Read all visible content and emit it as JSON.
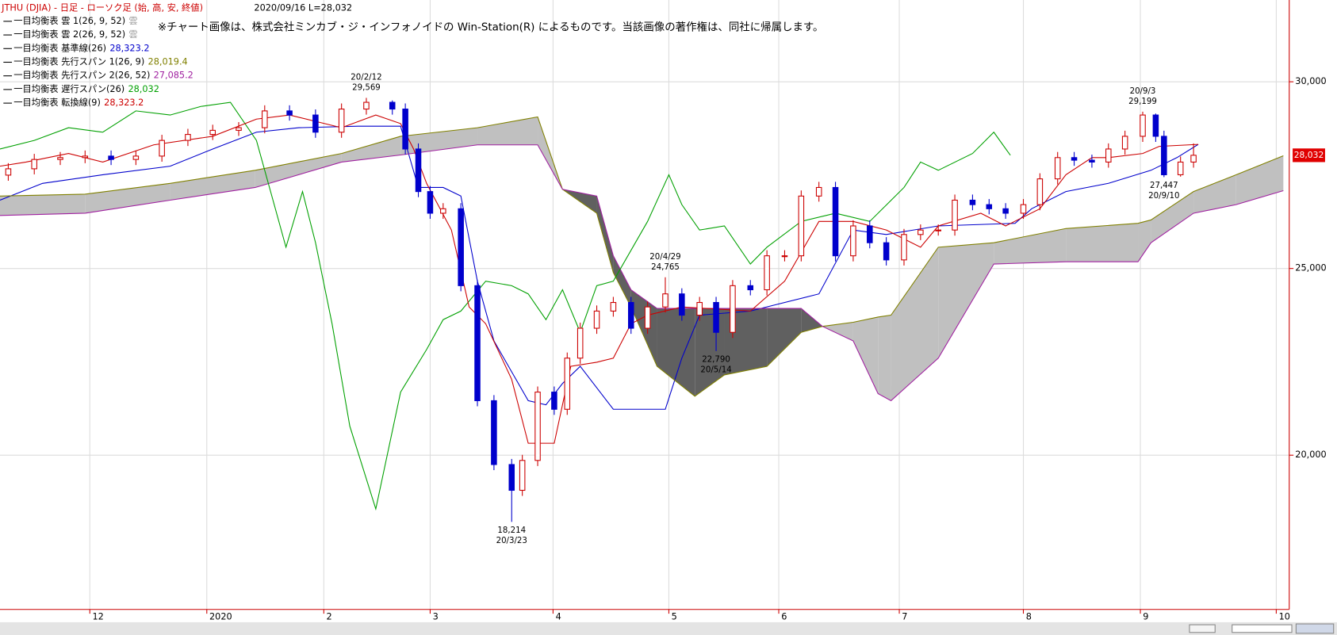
{
  "chart_data": {
    "type": "candlestick",
    "title": "JTHU (DJIA) - 日足 - ローソク足 (始, 高, 安, 終値)",
    "subtitle": "2020/09/16 L=28,032",
    "note": "※チャート画像は、株式会社ミンカブ・ジ・インフォノイドの Win-Station(R) によるものです。当該画像の著作権は、同社に帰属します。",
    "grid": true,
    "xlim": [
      11.17,
      22.08
    ],
    "xticks": [
      {
        "value": 11.93,
        "label": "12"
      },
      {
        "value": 12.92,
        "label": "2020"
      },
      {
        "value": 13.91,
        "label": "2"
      },
      {
        "value": 14.81,
        "label": "3"
      },
      {
        "value": 15.85,
        "label": "4"
      },
      {
        "value": 16.83,
        "label": "5"
      },
      {
        "value": 17.76,
        "label": "6"
      },
      {
        "value": 18.78,
        "label": "7"
      },
      {
        "value": 19.83,
        "label": "8"
      },
      {
        "value": 20.82,
        "label": "9"
      },
      {
        "value": 21.97,
        "label": "10"
      }
    ],
    "ylim": [
      15870,
      32190
    ],
    "yticks": [
      {
        "value": 20000,
        "label": "20,000"
      },
      {
        "value": 25000,
        "label": "25,000"
      },
      {
        "value": 30000,
        "label": "30,000"
      }
    ],
    "candles": {
      "up_color": "#cc0000",
      "down_color": "#0000cc",
      "x": [
        11.24,
        11.46,
        11.68,
        11.89,
        12.11,
        12.32,
        12.54,
        12.76,
        12.97,
        13.19,
        13.41,
        13.62,
        13.84,
        14.06,
        14.27,
        14.49,
        14.6,
        14.71,
        14.81,
        14.92,
        15.07,
        15.21,
        15.35,
        15.5,
        15.59,
        15.72,
        15.86,
        15.97,
        16.08,
        16.22,
        16.36,
        16.51,
        16.65,
        16.8,
        16.94,
        17.09,
        17.23,
        17.37,
        17.52,
        17.66,
        17.81,
        17.95,
        18.1,
        18.24,
        18.39,
        18.53,
        18.67,
        18.82,
        18.96,
        19.11,
        19.25,
        19.4,
        19.54,
        19.68,
        19.83,
        19.97,
        20.12,
        20.26,
        20.41,
        20.55,
        20.69,
        20.84,
        20.95,
        21.02,
        21.16,
        21.27
      ],
      "open": [
        27500,
        27670,
        27920,
        27970,
        28010,
        27920,
        28010,
        28430,
        28590,
        28700,
        28770,
        29220,
        29110,
        28650,
        29270,
        29450,
        29270,
        28200,
        27060,
        26480,
        26600,
        24540,
        21460,
        19750,
        19060,
        19860,
        21690,
        21230,
        22600,
        23400,
        23860,
        24090,
        23400,
        23970,
        24320,
        23750,
        24090,
        23290,
        24540,
        24430,
        25340,
        25340,
        26940,
        27170,
        25340,
        26140,
        25690,
        25230,
        25910,
        26030,
        26030,
        26830,
        26710,
        26600,
        26480,
        26710,
        27400,
        27970,
        27900,
        27850,
        28200,
        28540,
        29110,
        28540,
        27510,
        27850
      ],
      "high": [
        27820,
        28070,
        28120,
        28160,
        28160,
        28160,
        28580,
        28740,
        28850,
        28920,
        29370,
        29370,
        29260,
        29420,
        29569,
        29500,
        29420,
        28350,
        27210,
        26750,
        26750,
        24690,
        21610,
        19900,
        20010,
        21840,
        21840,
        22750,
        23550,
        24010,
        24240,
        24240,
        24120,
        24765,
        24470,
        24240,
        24240,
        24690,
        24690,
        25490,
        25490,
        27090,
        27320,
        27320,
        26290,
        26290,
        25840,
        26060,
        26180,
        26180,
        26980,
        26980,
        26860,
        26750,
        26860,
        27550,
        28120,
        28120,
        28050,
        28350,
        28690,
        29199,
        29150,
        28690,
        28000,
        28350
      ],
      "low": [
        27350,
        27520,
        27770,
        27820,
        27770,
        27770,
        27860,
        28280,
        28440,
        28550,
        28620,
        28960,
        28500,
        28500,
        29120,
        29120,
        28050,
        26910,
        26330,
        26330,
        24390,
        21310,
        19600,
        18214,
        18910,
        19710,
        21080,
        21080,
        22450,
        23250,
        23710,
        23250,
        23250,
        23820,
        23600,
        23600,
        22790,
        23140,
        24280,
        24280,
        25190,
        25190,
        26790,
        25190,
        25190,
        25540,
        25080,
        25080,
        25760,
        25880,
        25880,
        26560,
        26450,
        26330,
        26330,
        26560,
        27250,
        27750,
        27700,
        27700,
        28050,
        28390,
        28390,
        27447,
        27460,
        27700
      ],
      "close": [
        27670,
        27920,
        27970,
        28010,
        27920,
        28010,
        28430,
        28590,
        28700,
        28770,
        29220,
        29110,
        28650,
        29270,
        29450,
        29270,
        28200,
        27060,
        26480,
        26600,
        24540,
        21460,
        19750,
        19060,
        19860,
        21690,
        21230,
        22600,
        23400,
        23860,
        24090,
        23400,
        23970,
        24320,
        23750,
        24090,
        23290,
        24540,
        24430,
        25340,
        25340,
        26940,
        27170,
        25340,
        26140,
        25690,
        25230,
        25910,
        26030,
        26030,
        26830,
        26710,
        26600,
        26480,
        26710,
        27400,
        27970,
        27900,
        27850,
        28200,
        28540,
        29110,
        28540,
        27510,
        27850,
        28032
      ]
    },
    "cloud": {
      "legend": [
        "一目均衡表 雲 1(26, 9, 52)",
        "一目均衡表 雲 2(26, 9, 52)"
      ],
      "symbol": "雲",
      "symbol_color": "#a0a0a0",
      "up_color": "#c0c0c0",
      "down_color": "#606060"
    },
    "series": [
      {
        "name": "一目均衡表 基準線(26)",
        "value_label": "28,323.2",
        "color": "#0000cc",
        "x": [
          11.17,
          11.53,
          12.04,
          12.61,
          12.97,
          13.34,
          13.7,
          14.2,
          14.56,
          14.71,
          14.92,
          15.07,
          15.21,
          15.35,
          15.64,
          15.79,
          15.93,
          16.08,
          16.36,
          16.8,
          16.94,
          17.09,
          17.52,
          18.1,
          18.39,
          18.67,
          19.11,
          19.76,
          19.9,
          20.19,
          20.55,
          20.91,
          21.13,
          21.31
        ],
        "values": [
          26830,
          27280,
          27510,
          27740,
          28200,
          28650,
          28770,
          28810,
          28810,
          27170,
          27170,
          26940,
          24660,
          23060,
          21460,
          21350,
          21920,
          22380,
          21230,
          21230,
          22600,
          23750,
          23860,
          24320,
          26030,
          25910,
          26140,
          26210,
          26600,
          27060,
          27280,
          27630,
          27970,
          28323.2
        ]
      },
      {
        "name": "一目均衡表 先行スパン 1(26, 9)",
        "value_label": "28,019.4",
        "color": "#808000",
        "x": [
          11.17,
          11.89,
          12.61,
          13.33,
          14.06,
          14.56,
          15.21,
          15.72,
          15.93,
          16.22,
          16.36,
          16.51,
          16.73,
          17.05,
          17.3,
          17.66,
          17.95,
          18.13,
          18.39,
          18.6,
          18.71,
          19.11,
          19.58,
          20.19,
          20.8,
          20.91,
          21.27,
          21.63,
          22.03
        ],
        "values": [
          26940,
          26990,
          27280,
          27630,
          28080,
          28540,
          28770,
          29060,
          27120,
          26480,
          24890,
          23970,
          22380,
          21580,
          22150,
          22380,
          23290,
          23450,
          23560,
          23700,
          23750,
          25570,
          25690,
          26070,
          26210,
          26300,
          27060,
          27510,
          28019.4
        ]
      },
      {
        "name": "一目均衡表 先行スパン 2(26, 52)",
        "value_label": "27,085.2",
        "color": "#a020a0",
        "x": [
          11.17,
          11.89,
          12.61,
          13.33,
          14.06,
          14.56,
          15.21,
          15.72,
          15.93,
          16.22,
          16.36,
          16.51,
          16.73,
          17.05,
          17.3,
          17.66,
          17.95,
          18.13,
          18.39,
          18.6,
          18.71,
          19.11,
          19.58,
          20.19,
          20.8,
          20.91,
          21.27,
          21.63,
          22.03
        ],
        "values": [
          26420,
          26480,
          26830,
          27170,
          27850,
          28040,
          28310,
          28310,
          27120,
          26940,
          25340,
          24430,
          23930,
          23930,
          23930,
          23930,
          23930,
          23450,
          23060,
          21650,
          21460,
          22600,
          25120,
          25180,
          25180,
          25690,
          26480,
          26710,
          27085.2
        ]
      },
      {
        "name": "一目均衡表 遅行スパン(26)",
        "value_label": "28,032",
        "color": "#00a000",
        "x": [
          11.17,
          11.46,
          11.75,
          12.04,
          12.32,
          12.61,
          12.87,
          13.12,
          13.34,
          13.48,
          13.59,
          13.73,
          13.84,
          13.98,
          14.13,
          14.35,
          14.56,
          14.78,
          14.92,
          15.07,
          15.28,
          15.5,
          15.64,
          15.79,
          15.93,
          16.08,
          16.22,
          16.36,
          16.65,
          16.83,
          16.94,
          17.09,
          17.3,
          17.52,
          17.66,
          17.95,
          18.24,
          18.53,
          18.82,
          18.96,
          19.11,
          19.4,
          19.58,
          19.72
        ],
        "values": [
          28200,
          28430,
          28770,
          28650,
          29220,
          29110,
          29340,
          29450,
          28430,
          26830,
          25570,
          27060,
          25690,
          23520,
          20780,
          18560,
          21690,
          22830,
          23630,
          23860,
          24660,
          24540,
          24320,
          23630,
          24430,
          23290,
          24540,
          24660,
          26260,
          27510,
          26710,
          26030,
          26140,
          25120,
          25570,
          26260,
          26480,
          26260,
          27170,
          27850,
          27630,
          28080,
          28650,
          28032
        ]
      },
      {
        "name": "一目均衡表 転換線(9)",
        "value_label": "28,323.2",
        "color": "#cc0000",
        "x": [
          11.17,
          11.39,
          11.75,
          12.04,
          12.47,
          12.97,
          13.34,
          13.62,
          14.06,
          14.35,
          14.56,
          14.67,
          14.78,
          14.99,
          15.14,
          15.28,
          15.5,
          15.64,
          15.86,
          16.0,
          16.22,
          16.36,
          16.51,
          16.65,
          16.94,
          17.52,
          17.81,
          18.1,
          18.39,
          18.67,
          18.96,
          19.11,
          19.47,
          19.68,
          19.97,
          20.19,
          20.41,
          20.55,
          20.84,
          20.98,
          21.31
        ],
        "values": [
          27740,
          27850,
          28080,
          27850,
          28310,
          28540,
          29000,
          29110,
          28770,
          29110,
          28880,
          28200,
          27280,
          26030,
          23970,
          23520,
          22030,
          20320,
          20320,
          22380,
          22490,
          22600,
          23520,
          23750,
          23970,
          23860,
          24660,
          26260,
          26260,
          26030,
          25570,
          26140,
          26480,
          26140,
          26600,
          27510,
          27970,
          27970,
          28080,
          28270,
          28323.2
        ]
      }
    ],
    "annotations": [
      {
        "x": 14.27,
        "value": 29569,
        "position": "above",
        "lines": [
          "20/2/12",
          "29,569"
        ]
      },
      {
        "x": 15.5,
        "value": 18214,
        "position": "below",
        "lines": [
          "18,214",
          "20/3/23"
        ]
      },
      {
        "x": 16.8,
        "value": 24765,
        "position": "above",
        "lines": [
          "20/4/29",
          "24,765"
        ]
      },
      {
        "x": 17.23,
        "value": 22790,
        "position": "below",
        "lines": [
          "22,790",
          "20/5/14"
        ]
      },
      {
        "x": 20.84,
        "value": 29199,
        "position": "above",
        "lines": [
          "20/9/3",
          "29,199"
        ]
      },
      {
        "x": 21.02,
        "value": 27447,
        "position": "below",
        "lines": [
          "27,447",
          "20/9/10"
        ]
      }
    ],
    "last_price": {
      "value": 28032,
      "label": "28,032",
      "color": "#e00000"
    }
  }
}
